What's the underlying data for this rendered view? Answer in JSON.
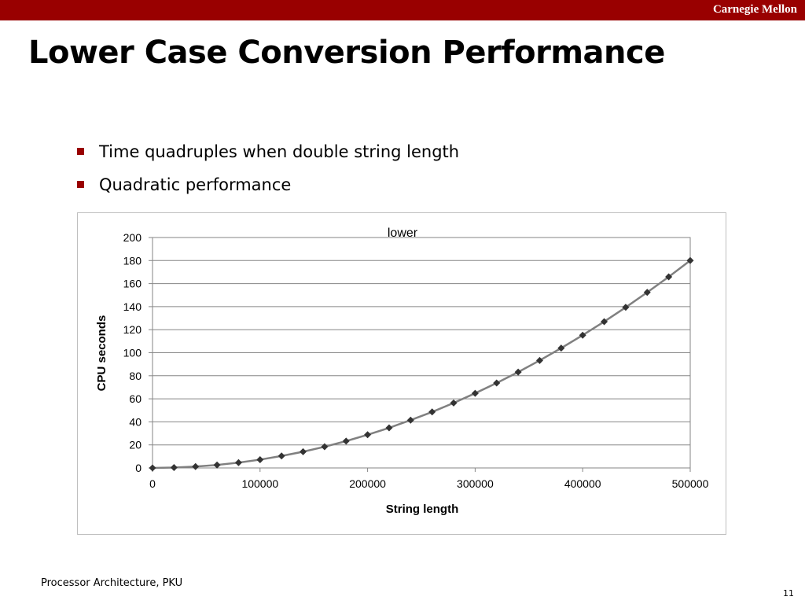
{
  "header": {
    "brand": "Carnegie Mellon"
  },
  "slide": {
    "title": "Lower Case Conversion Performance",
    "bullets": [
      "Time quadruples when double string length",
      "Quadratic performance"
    ]
  },
  "footer": {
    "left": "Processor Architecture, PKU",
    "page": "11"
  },
  "colors": {
    "accent": "#990000",
    "series_line": "#808080",
    "marker": "#333333"
  },
  "chart_data": {
    "type": "line",
    "title": "lower",
    "xlabel": "String length",
    "ylabel": "CPU seconds",
    "xlim": [
      0,
      500000
    ],
    "ylim": [
      0,
      200
    ],
    "xticks": [
      0,
      100000,
      200000,
      300000,
      400000,
      500000
    ],
    "yticks": [
      0,
      20,
      40,
      60,
      80,
      100,
      120,
      140,
      160,
      180,
      200
    ],
    "grid": "horizontal",
    "series": [
      {
        "x": [
          0,
          20000,
          40000,
          60000,
          80000,
          100000,
          120000,
          140000,
          160000,
          180000,
          200000,
          220000,
          240000,
          260000,
          280000,
          300000,
          320000,
          340000,
          360000,
          380000,
          400000,
          420000,
          440000,
          460000,
          480000,
          500000
        ],
        "values": [
          0,
          0.3,
          1.2,
          2.6,
          4.6,
          7.2,
          10.4,
          14.1,
          18.4,
          23.3,
          28.8,
          34.8,
          41.5,
          48.6,
          56.4,
          64.8,
          73.7,
          83.2,
          93.3,
          104.0,
          115.2,
          127.0,
          139.4,
          152.4,
          165.9,
          180.0
        ]
      }
    ]
  }
}
